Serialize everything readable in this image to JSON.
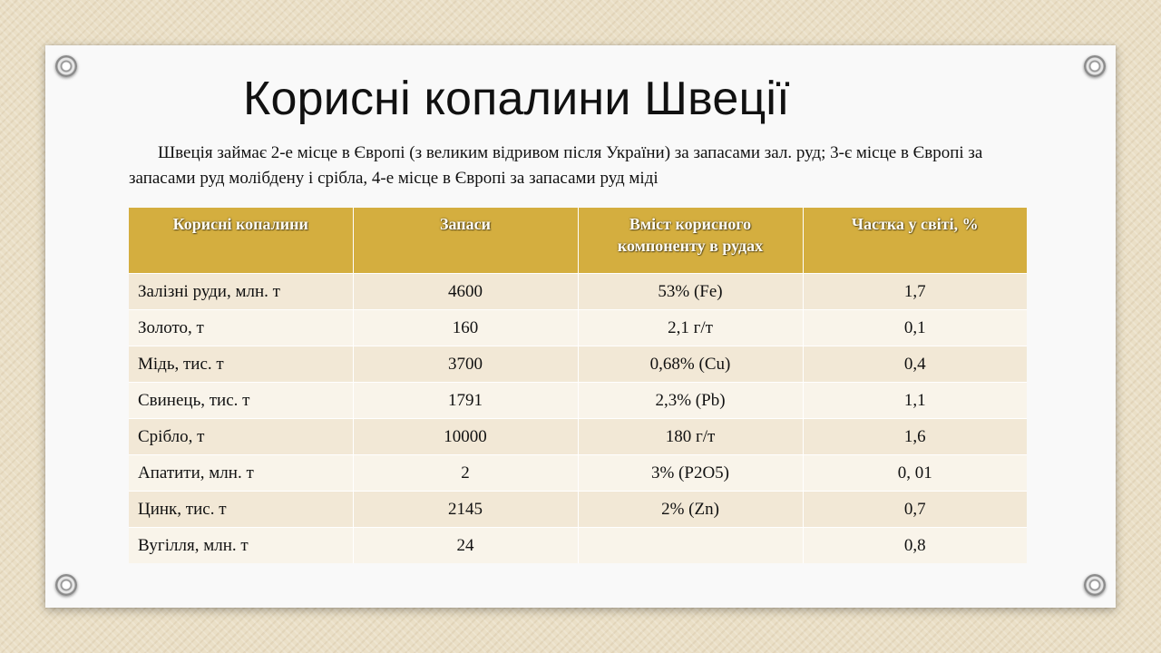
{
  "slide": {
    "title": "Корисні копалини Швеції",
    "intro": "Швеція займає 2-е місце в Європі (з великим відривом після України) за запасами зал. руд; 3-є місце в Європі за запасами руд молібдену і срібла, 4-е місце в Європі за запасами руд міді"
  },
  "colors": {
    "header_bg": "#d4ae3f",
    "row_odd": "#f2e8d6",
    "row_even": "#f9f4ea"
  },
  "table": {
    "headers": [
      "Корисні копалини",
      "Запаси",
      "Вміст корисного компоненту в рудах",
      "Частка у світі, %"
    ],
    "rows": [
      [
        "Залізні руди, млн. т",
        "4600",
        "53% (Fe)",
        "1,7"
      ],
      [
        "Золото, т",
        "160",
        "2,1 г/т",
        "0,1"
      ],
      [
        "Мідь, тис. т",
        "3700",
        "0,68% (Cu)",
        "0,4"
      ],
      [
        "Свинець, тис. т",
        "1791",
        "2,3% (Pb)",
        "1,1"
      ],
      [
        "Срібло, т",
        "10000",
        "180 г/т",
        "1,6"
      ],
      [
        "Апатити, млн. т",
        "2",
        "3% (P2O5)",
        "0, 01"
      ],
      [
        "Цинк, тис. т",
        "2145",
        "2% (Zn)",
        "0,7"
      ],
      [
        "Вугілля, млн. т",
        "24",
        "",
        "0,8"
      ]
    ]
  }
}
